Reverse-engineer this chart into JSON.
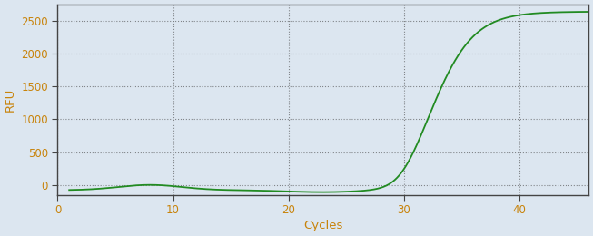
{
  "title": "",
  "xlabel": "Cycles",
  "ylabel": "RFU",
  "line_color": "#228B22",
  "background_color": "#dce6f0",
  "plot_bg_color": "#dce6f0",
  "spine_color": "#444444",
  "grid_color": "#444444",
  "tick_label_color": "#c8830a",
  "axis_label_color": "#c8830a",
  "xlim": [
    0,
    46
  ],
  "ylim": [
    -150,
    2750
  ],
  "xticks": [
    0,
    10,
    20,
    30,
    40
  ],
  "yticks": [
    0,
    500,
    1000,
    1500,
    2000,
    2500
  ],
  "sigmoid_L": 2640,
  "sigmoid_k": 0.52,
  "sigmoid_x0": 32.5,
  "x_start": 1,
  "x_end": 46
}
